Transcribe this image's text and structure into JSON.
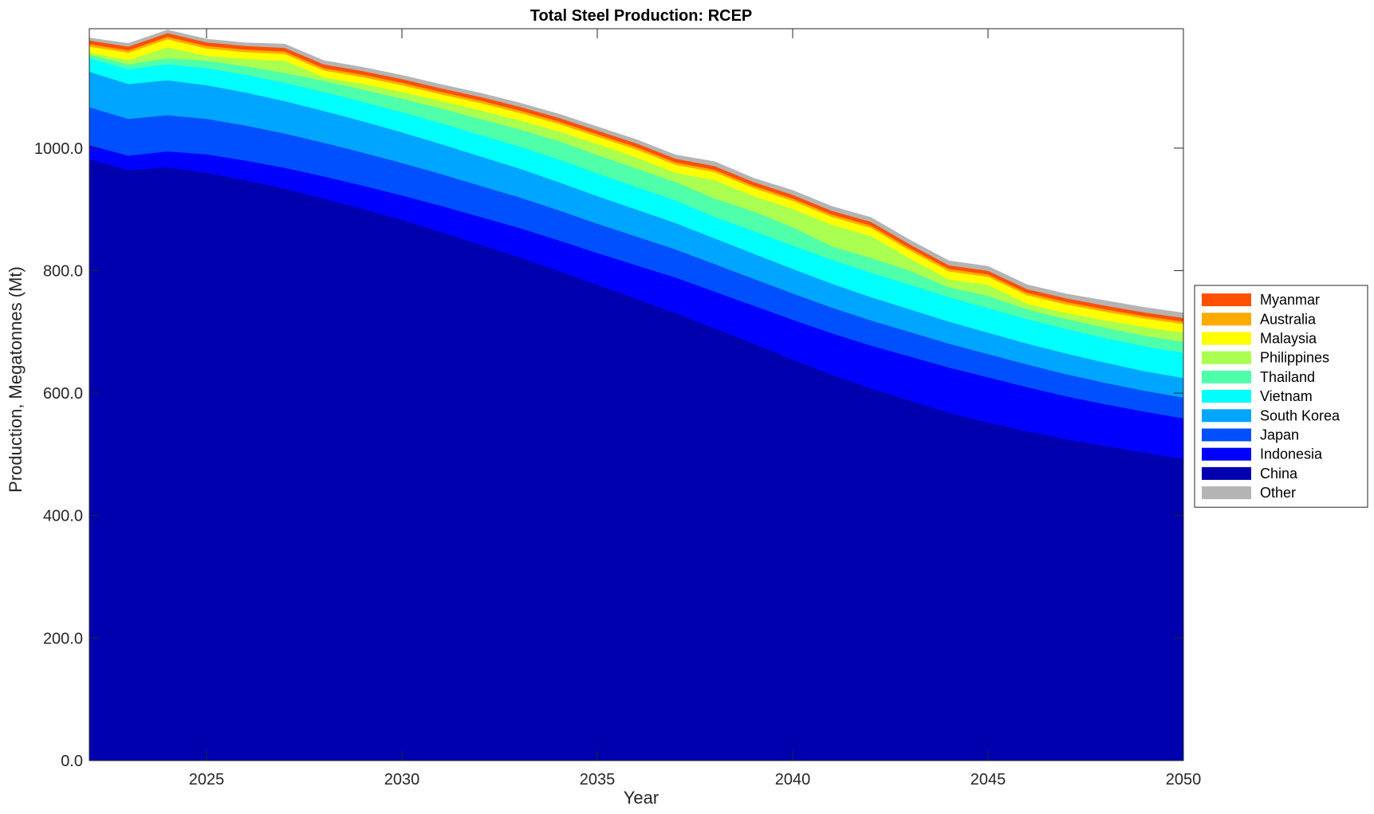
{
  "chart_data": {
    "type": "area",
    "stacked": true,
    "title": "Total Steel Production: RCEP",
    "xlabel": "Year",
    "ylabel": "Production, Megatonnes (Mt)",
    "xlim": [
      2022,
      2050
    ],
    "ylim": [
      0,
      1195
    ],
    "x_ticks": [
      2025,
      2030,
      2035,
      2040,
      2045,
      2050
    ],
    "y_ticks": [
      0,
      200,
      400,
      600,
      800,
      1000
    ],
    "y_tick_labels": [
      "0.0",
      "200.0",
      "400.0",
      "600.0",
      "800.0",
      "1000.0"
    ],
    "grid": false,
    "legend_position": "outside-right",
    "x": [
      2022,
      2023,
      2024,
      2025,
      2026,
      2027,
      2028,
      2029,
      2030,
      2031,
      2032,
      2033,
      2034,
      2035,
      2036,
      2037,
      2038,
      2039,
      2040,
      2041,
      2042,
      2043,
      2044,
      2045,
      2046,
      2047,
      2048,
      2049,
      2050
    ],
    "series": [
      {
        "name": "China",
        "color": "#0000AF",
        "values": [
          982,
          964,
          969,
          960,
          948,
          934,
          918,
          901,
          883,
          863,
          843,
          822,
          800,
          777,
          754,
          731,
          706,
          681,
          655,
          630,
          608,
          588,
          568,
          552,
          538,
          525,
          514,
          503,
          493
        ]
      },
      {
        "name": "Indonesia",
        "color": "#0000FF",
        "values": [
          23,
          24,
          26,
          30,
          32,
          34,
          36,
          38,
          40,
          43,
          45,
          48,
          50,
          52,
          55,
          58,
          60,
          62,
          65,
          68,
          70,
          72,
          74,
          74,
          72,
          70,
          68,
          67,
          66
        ]
      },
      {
        "name": "Japan",
        "color": "#0050FF",
        "values": [
          62,
          60,
          59,
          58,
          57,
          56,
          55,
          54,
          53,
          52,
          51,
          50,
          49,
          48,
          47,
          46,
          45,
          44,
          43,
          42,
          41,
          40,
          39,
          38,
          37,
          36,
          35,
          34,
          34
        ]
      },
      {
        "name": "South Korea",
        "color": "#00A5FF",
        "values": [
          58,
          57,
          57,
          55,
          54,
          53,
          52,
          51,
          50,
          49,
          48,
          47,
          46,
          45,
          44,
          43,
          42,
          41,
          40,
          39,
          38,
          37,
          36,
          35,
          34,
          34,
          33,
          32,
          32
        ]
      },
      {
        "name": "Vietnam",
        "color": "#00FFFF",
        "values": [
          22,
          24,
          26,
          28,
          29,
          30,
          31,
          32,
          33,
          34,
          35,
          36,
          37,
          37,
          37,
          37,
          35,
          37,
          38,
          39,
          40,
          40,
          40,
          40,
          40,
          40,
          40,
          41,
          41
        ]
      },
      {
        "name": "Thailand",
        "color": "#50FFAA",
        "values": [
          6,
          8,
          10,
          12,
          14,
          16,
          18,
          20,
          22,
          24,
          26,
          28,
          30,
          30,
          30,
          30,
          30,
          32,
          30,
          22,
          24,
          23,
          16,
          20,
          16,
          16,
          17,
          17,
          18
        ]
      },
      {
        "name": "Philippines",
        "color": "#AAFF50",
        "values": [
          3,
          7,
          18,
          8,
          12,
          20,
          6,
          9,
          11,
          12,
          14,
          15,
          16,
          18,
          18,
          15,
          30,
          25,
          30,
          35,
          36,
          20,
          13,
          18,
          9,
          10,
          12,
          14,
          15
        ]
      },
      {
        "name": "Malaysia",
        "color": "#FFFF00",
        "values": [
          10,
          12,
          13,
          12,
          11,
          11,
          11,
          11,
          11,
          11,
          12,
          12,
          12,
          12,
          13,
          13,
          13,
          13,
          13,
          13,
          13,
          13,
          13,
          13,
          14,
          14,
          14,
          14,
          14
        ]
      },
      {
        "name": "Australia",
        "color": "#FFAA00",
        "values": [
          4,
          4,
          4,
          4,
          4,
          4,
          4,
          4,
          4,
          4,
          4,
          4,
          4,
          4,
          4,
          4,
          4,
          4,
          4,
          4,
          4,
          4,
          4,
          4,
          4,
          4,
          4,
          4,
          4
        ]
      },
      {
        "name": "Myanmar",
        "color": "#FF5000",
        "values": [
          6,
          6,
          6,
          6,
          6,
          6,
          6,
          6,
          6,
          6,
          6,
          6,
          6,
          6,
          6,
          6,
          6,
          6,
          6,
          6,
          6,
          6,
          6,
          6,
          6,
          6,
          6,
          6,
          6
        ]
      },
      {
        "name": "Other",
        "color": "#B4B4B4",
        "values": [
          4,
          5,
          5,
          5,
          5,
          6,
          6,
          6,
          6,
          6,
          6,
          6,
          6,
          6,
          6,
          6,
          7,
          6,
          7,
          7,
          7,
          7,
          7,
          7,
          7,
          7,
          8,
          8,
          8
        ]
      }
    ],
    "legend_entries": [
      "Myanmar",
      "Australia",
      "Malaysia",
      "Philippines",
      "Thailand",
      "Vietnam",
      "South Korea",
      "Japan",
      "Indonesia",
      "China",
      "Other"
    ]
  }
}
